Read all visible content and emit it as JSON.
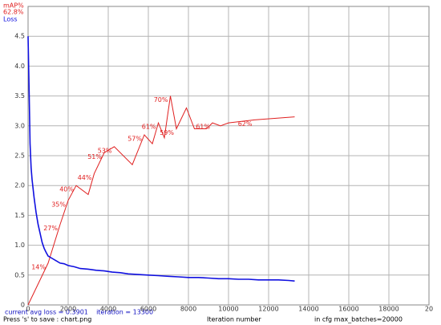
{
  "chart_data": {
    "type": "line",
    "best_map_label": "62.8%",
    "status_line": "current avg loss = 0.3901    iteration = 13300",
    "save_hint": "Press 's' to save : chart.png",
    "x_label": "Iteration number",
    "max_batches_label": "in cfg max_batches=20000",
    "xlim": [
      0,
      20000
    ],
    "xticks": [
      0,
      2000,
      4000,
      6000,
      8000,
      10000,
      12000,
      14000,
      16000,
      18000,
      {
        "value": 20000,
        "label": "20"
      }
    ],
    "ylim": [
      0,
      5
    ],
    "yticks": [
      0,
      0.5,
      {
        "value": 1,
        "label": "1.0"
      },
      1.5,
      {
        "value": 2,
        "label": "2.0"
      },
      2.5,
      {
        "value": 3,
        "label": "3.0"
      },
      3.5,
      {
        "value": 4,
        "label": "4.0"
      },
      4.5
    ],
    "y2lim": [
      0,
      100
    ],
    "grid": true,
    "series": [
      {
        "name": "mAP%",
        "color": "#e02020",
        "axis": "y2",
        "x": [
          0,
          1000,
          1600,
          2000,
          2400,
          3000,
          3300,
          3800,
          4300,
          5200,
          5800,
          6200,
          6500,
          6800,
          7100,
          7400,
          7900,
          8300,
          8900,
          9200,
          9600,
          10000,
          11300,
          13300
        ],
        "values": [
          0,
          14,
          27,
          35,
          40,
          37,
          44,
          51,
          53,
          47,
          57,
          54,
          61,
          56,
          70,
          59,
          66,
          59,
          59,
          61,
          60,
          61,
          62,
          63
        ],
        "value_labels": [
          null,
          "14%",
          "27%",
          "35%",
          "40%",
          null,
          "44%",
          "51%",
          "53%",
          null,
          "57%",
          null,
          "61%",
          null,
          "70%",
          "59%",
          null,
          null,
          null,
          "61%",
          null,
          null,
          "62%",
          null
        ]
      },
      {
        "name": "Loss",
        "color": "#1010e0",
        "axis": "y",
        "x": [
          0,
          50,
          100,
          150,
          200,
          300,
          400,
          500,
          600,
          700,
          800,
          900,
          1000,
          1200,
          1400,
          1600,
          1800,
          2000,
          2300,
          2600,
          3000,
          3400,
          3800,
          4200,
          4600,
          5000,
          5500,
          6000,
          6500,
          7000,
          7500,
          8000,
          8500,
          9000,
          9500,
          10000,
          10500,
          11000,
          11500,
          12000,
          12500,
          13000,
          13300
        ],
        "values": [
          4.5,
          3.6,
          2.7,
          2.3,
          2.1,
          1.8,
          1.55,
          1.35,
          1.2,
          1.05,
          0.95,
          0.88,
          0.82,
          0.78,
          0.74,
          0.7,
          0.69,
          0.66,
          0.64,
          0.61,
          0.6,
          0.58,
          0.57,
          0.55,
          0.54,
          0.52,
          0.51,
          0.5,
          0.49,
          0.48,
          0.47,
          0.46,
          0.46,
          0.45,
          0.44,
          0.44,
          0.43,
          0.43,
          0.42,
          0.42,
          0.42,
          0.41,
          0.4
        ]
      }
    ]
  }
}
